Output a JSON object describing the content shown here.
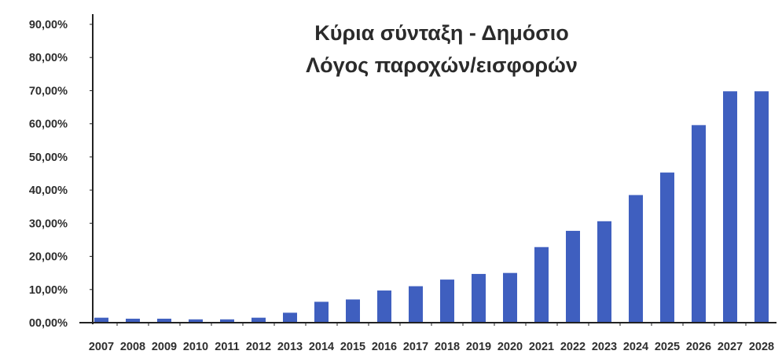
{
  "chart_data": {
    "type": "bar",
    "title": "Κύρια σύνταξη - Δημόσιο",
    "subtitle": "Λόγος παροχών/εισφορών",
    "xlabel": "",
    "ylabel": "",
    "ylim": [
      0,
      90
    ],
    "y_ticks": [
      "00,00%",
      "10,00%",
      "20,00%",
      "30,00%",
      "40,00%",
      "50,00%",
      "60,00%",
      "70,00%",
      "80,00%",
      "90,00%"
    ],
    "y_tick_values": [
      0,
      10,
      20,
      30,
      40,
      50,
      60,
      70,
      80,
      90
    ],
    "grid": false,
    "legend": "none",
    "categories": [
      "2007",
      "2008",
      "2009",
      "2010",
      "2011",
      "2012",
      "2013",
      "2014",
      "2015",
      "2016",
      "2017",
      "2018",
      "2019",
      "2020",
      "2021",
      "2022",
      "2023",
      "2024",
      "2025",
      "2026",
      "2027",
      "2028"
    ],
    "values": [
      1.5,
      1.2,
      1.2,
      1.0,
      1.0,
      1.5,
      3.0,
      6.3,
      7.0,
      9.7,
      11.0,
      13.0,
      14.7,
      15.0,
      22.8,
      27.7,
      30.6,
      38.5,
      45.3,
      59.6,
      69.8,
      69.8
    ],
    "bar_color": "#3f5fbf"
  }
}
